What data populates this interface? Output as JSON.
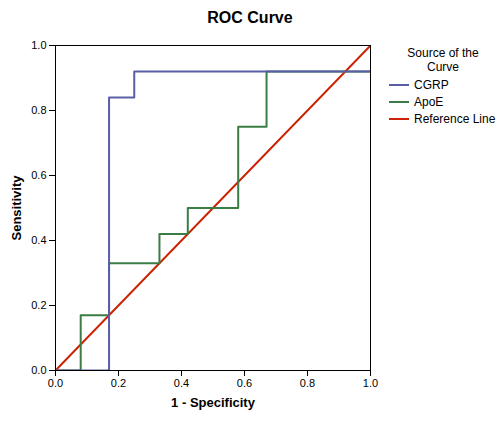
{
  "chart_data": {
    "type": "line",
    "title": "ROC Curve",
    "xlabel": "1 - Specificity",
    "ylabel": "Sensitivity",
    "xlim": [
      0.0,
      1.0
    ],
    "ylim": [
      0.0,
      1.0
    ],
    "xticks": [
      {
        "value": 0.0,
        "label": "0.0"
      },
      {
        "value": 0.2,
        "label": "0.2"
      },
      {
        "value": 0.4,
        "label": "0.4"
      },
      {
        "value": 0.6,
        "label": "0.6"
      },
      {
        "value": 0.8,
        "label": "0.8"
      },
      {
        "value": 1.0,
        "label": "1.0"
      }
    ],
    "yticks": [
      {
        "value": 0.0,
        "label": "0.0"
      },
      {
        "value": 0.2,
        "label": "0.2"
      },
      {
        "value": 0.4,
        "label": "0.4"
      },
      {
        "value": 0.6,
        "label": "0.6"
      },
      {
        "value": 0.8,
        "label": "0.8"
      },
      {
        "value": 1.0,
        "label": "1.0"
      }
    ],
    "grid": false,
    "legend": "right",
    "legend_title": "Source of the\nCurve",
    "series": [
      {
        "name": "CGRP",
        "color": "#5b5ea6",
        "x": [
          0.0,
          0.17,
          0.17,
          0.17,
          0.25,
          0.25,
          1.0
        ],
        "values": [
          0.0,
          0.0,
          0.33,
          0.84,
          0.84,
          0.92,
          0.92
        ]
      },
      {
        "name": "ApoE",
        "color": "#3a7d44",
        "x": [
          0.0,
          0.08,
          0.08,
          0.17,
          0.17,
          0.33,
          0.33,
          0.42,
          0.42,
          0.58,
          0.58,
          0.67,
          0.67,
          0.83,
          0.83,
          1.0
        ],
        "values": [
          0.0,
          0.0,
          0.17,
          0.17,
          0.33,
          0.33,
          0.42,
          0.42,
          0.5,
          0.5,
          0.75,
          0.75,
          0.92,
          0.92,
          0.92,
          0.92
        ]
      },
      {
        "name": "Reference Line",
        "color": "#cc2200",
        "x": [
          0.0,
          1.0
        ],
        "values": [
          0.0,
          1.0
        ]
      }
    ]
  }
}
